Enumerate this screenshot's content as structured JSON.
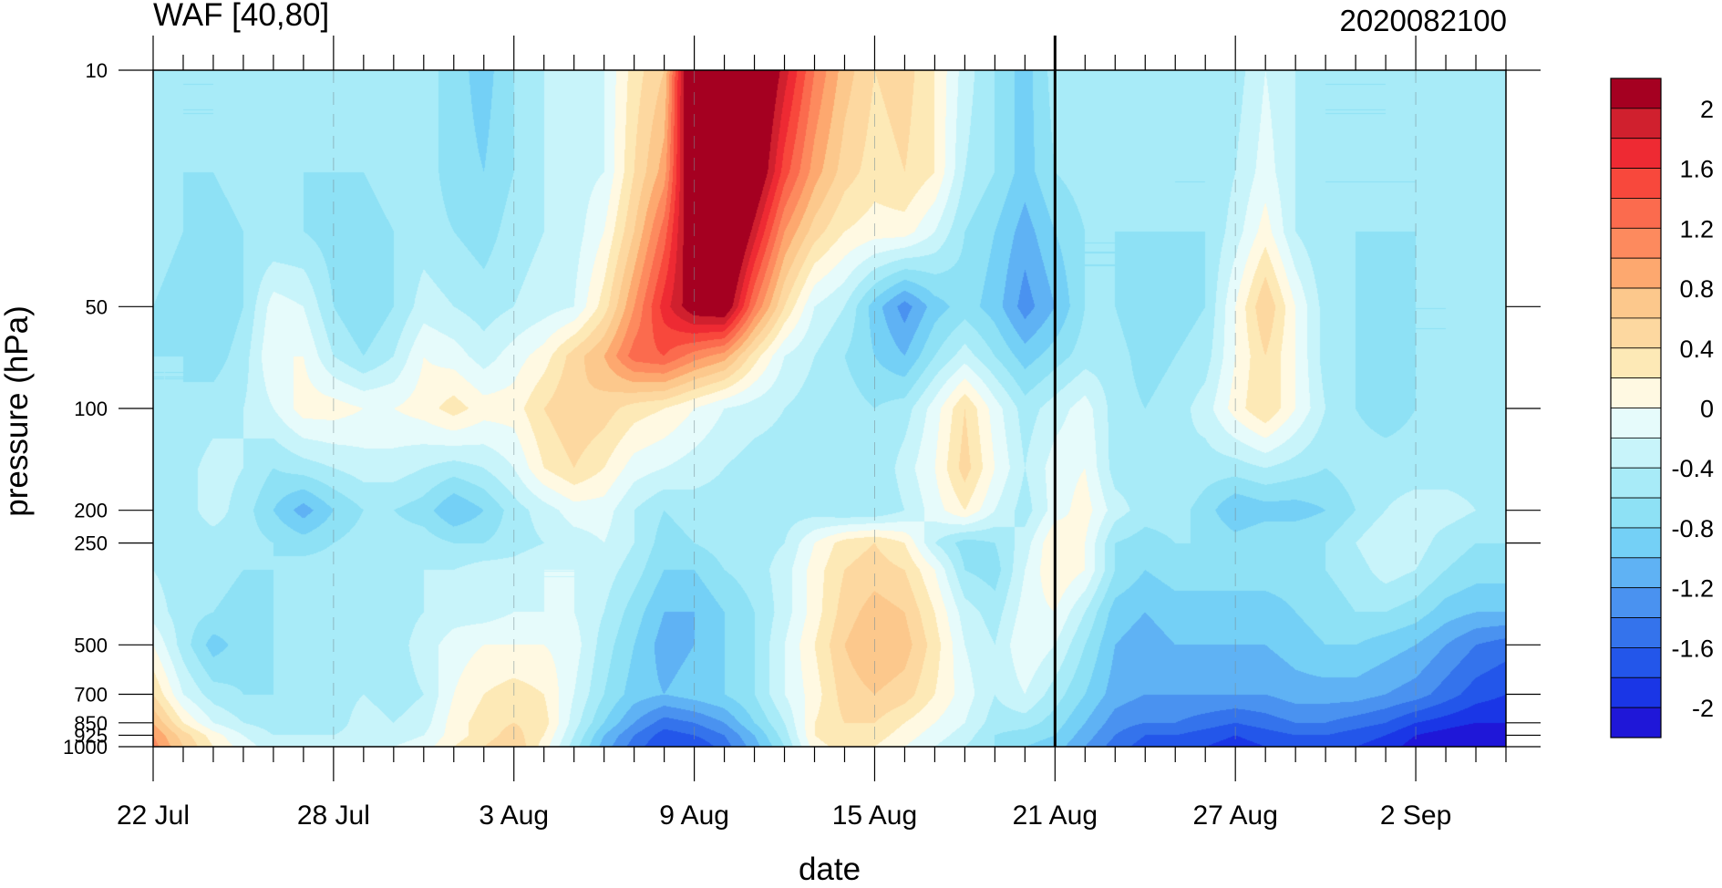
{
  "chart_data": {
    "type": "heatmap",
    "title": "WAF [40,80]",
    "subtitle_right": "2020082100",
    "xlabel": "date",
    "ylabel": "pressure (hPa)",
    "x_tick_labels": [
      "22 Jul",
      "28 Jul",
      "3 Aug",
      "9 Aug",
      "15 Aug",
      "21 Aug",
      "27 Aug",
      "2 Sep"
    ],
    "x_tick_days": [
      0,
      6,
      12,
      18,
      24,
      30,
      36,
      42
    ],
    "x_range_days": [
      0,
      45
    ],
    "y_tick_labels": [
      "10",
      "50",
      "100",
      "200",
      "250",
      "500",
      "700",
      "850",
      "925",
      "1000"
    ],
    "y_tick_values": [
      10,
      50,
      100,
      200,
      250,
      500,
      700,
      850,
      925,
      1000
    ],
    "y_range": [
      10,
      1000
    ],
    "y_scale": "log",
    "y_inverted": true,
    "current_date_day": 30,
    "colorbar": {
      "tick_labels": [
        "2",
        "1.6",
        "1.2",
        "0.8",
        "0.4",
        "0",
        "-0.4",
        "-0.8",
        "-1.2",
        "-1.6",
        "-2"
      ],
      "levels": [
        2.2,
        2.0,
        1.8,
        1.6,
        1.4,
        1.2,
        1.0,
        0.8,
        0.6,
        0.4,
        0.2,
        0.0,
        -0.2,
        -0.4,
        -0.6,
        -0.8,
        -1.0,
        -1.2,
        -1.4,
        -1.6,
        -1.8,
        -2.0,
        -2.2
      ],
      "colors": [
        "#a50021",
        "#d0202e",
        "#ee2a33",
        "#f8483c",
        "#fb6b4e",
        "#fd8a5e",
        "#fda86f",
        "#fcc88c",
        "#fdd8a0",
        "#fde9b6",
        "#fff9e2",
        "#e6fbfb",
        "#c8f4fa",
        "#a8ebf8",
        "#8ee1f5",
        "#74d0f6",
        "#5fb2f4",
        "#4a92f0",
        "#3473ec",
        "#2356ea",
        "#1a36e6",
        "#1f17d8"
      ]
    },
    "grid": {
      "day": [
        0,
        1,
        2,
        3,
        4,
        5,
        6,
        7,
        8,
        9,
        10,
        11,
        12,
        13,
        14,
        15,
        16,
        17,
        18,
        19,
        20,
        21,
        22,
        23,
        24,
        25,
        26,
        27,
        28,
        29,
        30,
        31,
        32,
        33,
        34,
        35,
        36,
        37,
        38,
        39,
        40,
        41,
        42,
        43,
        44,
        45
      ],
      "pressure_hPa": [
        10,
        20,
        30,
        50,
        70,
        100,
        150,
        200,
        250,
        300,
        400,
        500,
        700,
        850,
        925,
        1000
      ],
      "values": [
        [
          -0.5,
          -0.6,
          -0.6,
          -0.4,
          -0.5,
          -0.6,
          -0.5,
          -0.6,
          -0.4,
          -0.5,
          -0.7,
          -0.9,
          -0.6,
          -0.4,
          -0.3,
          -0.2,
          0.3,
          0.6,
          2.8,
          2.9,
          2.6,
          1.9,
          1.2,
          0.7,
          0.4,
          0.5,
          0.2,
          -0.3,
          -0.6,
          -0.9,
          -0.5,
          -0.5,
          -0.5,
          -0.6,
          -0.5,
          -0.5,
          -0.5,
          -0.2,
          -0.4,
          -0.6,
          -0.6,
          -0.6,
          -0.5,
          -0.5,
          -0.5,
          -0.4
        ],
        [
          -0.5,
          -0.6,
          -0.6,
          -0.5,
          -0.5,
          -0.6,
          -0.6,
          -0.6,
          -0.5,
          -0.5,
          -0.7,
          -0.8,
          -0.6,
          -0.4,
          -0.3,
          -0.2,
          0.4,
          0.9,
          2.6,
          2.9,
          2.4,
          1.5,
          0.9,
          0.5,
          0.3,
          0.4,
          0.2,
          -0.4,
          -0.6,
          -0.9,
          -0.6,
          -0.5,
          -0.5,
          -0.5,
          -0.6,
          -0.6,
          -0.4,
          -0.1,
          -0.4,
          -0.6,
          -0.6,
          -0.6,
          -0.6,
          -0.5,
          -0.5,
          -0.4
        ],
        [
          -0.5,
          -0.6,
          -0.7,
          -0.6,
          -0.6,
          -0.6,
          -0.7,
          -0.7,
          -0.6,
          -0.5,
          -0.6,
          -0.7,
          -0.5,
          -0.4,
          -0.3,
          0.0,
          0.6,
          1.3,
          2.4,
          2.8,
          1.9,
          1.0,
          0.5,
          0.2,
          0.1,
          0.1,
          -0.2,
          -0.6,
          -0.8,
          -1.1,
          -0.8,
          -0.6,
          -0.6,
          -0.6,
          -0.6,
          -0.6,
          -0.3,
          0.1,
          -0.4,
          -0.6,
          -0.6,
          -0.6,
          -0.6,
          -0.5,
          -0.5,
          -0.5
        ],
        [
          -0.6,
          -0.7,
          -0.8,
          -0.6,
          -0.1,
          -0.2,
          -0.6,
          -0.8,
          -0.6,
          -0.3,
          -0.4,
          -0.5,
          -0.4,
          -0.3,
          -0.2,
          0.3,
          1.0,
          1.7,
          2.2,
          2.3,
          1.2,
          0.4,
          -0.2,
          -0.4,
          -0.9,
          -1.3,
          -0.9,
          -0.7,
          -0.9,
          -1.3,
          -1.0,
          -0.6,
          -0.6,
          -0.8,
          -0.7,
          -0.6,
          0.0,
          0.6,
          0.0,
          -0.5,
          -0.6,
          -0.7,
          -0.6,
          -0.6,
          -0.5,
          -0.6
        ],
        [
          -0.6,
          -0.6,
          -0.7,
          -0.5,
          0.0,
          0.0,
          -0.4,
          -0.6,
          -0.4,
          0.0,
          -0.1,
          -0.3,
          -0.1,
          0.1,
          0.5,
          0.8,
          1.3,
          1.4,
          1.1,
          0.9,
          0.3,
          -0.2,
          -0.4,
          -0.6,
          -0.8,
          -1.0,
          -0.6,
          -0.3,
          -0.6,
          -0.9,
          -0.7,
          -0.5,
          -0.5,
          -0.7,
          -0.6,
          -0.5,
          0.0,
          0.4,
          0.0,
          -0.5,
          -0.6,
          -0.7,
          -0.6,
          -0.6,
          -0.5,
          -0.6
        ],
        [
          -0.6,
          -0.6,
          -0.5,
          -0.4,
          -0.2,
          0.1,
          0.1,
          0.0,
          0.0,
          0.1,
          0.3,
          0.1,
          0.1,
          0.4,
          0.6,
          0.5,
          0.3,
          0.2,
          0.0,
          -0.2,
          -0.3,
          -0.4,
          -0.5,
          -0.5,
          -0.6,
          -0.5,
          -0.1,
          0.4,
          -0.1,
          -0.5,
          -0.3,
          -0.1,
          -0.5,
          -0.6,
          -0.5,
          -0.3,
          0.1,
          0.4,
          0.0,
          -0.4,
          -0.6,
          -0.7,
          -0.6,
          -0.5,
          -0.5,
          -0.6
        ],
        [
          -0.6,
          -0.5,
          -0.3,
          -0.4,
          -0.6,
          -0.5,
          -0.4,
          -0.3,
          -0.3,
          -0.4,
          -0.5,
          -0.4,
          -0.2,
          0.2,
          0.4,
          0.2,
          -0.1,
          -0.2,
          -0.3,
          -0.4,
          -0.5,
          -0.5,
          -0.4,
          -0.5,
          -0.6,
          -0.3,
          0.0,
          0.5,
          0.0,
          -0.4,
          -0.1,
          0.0,
          -0.5,
          -0.5,
          -0.4,
          -0.5,
          -0.5,
          -0.4,
          -0.5,
          -0.6,
          -0.5,
          -0.5,
          -0.5,
          -0.5,
          -0.5,
          -0.5
        ],
        [
          -0.6,
          -0.5,
          -0.3,
          -0.5,
          -0.8,
          -1.1,
          -0.8,
          -0.6,
          -0.6,
          -0.7,
          -1.0,
          -0.8,
          -0.5,
          -0.3,
          -0.1,
          -0.1,
          -0.4,
          -0.6,
          -0.5,
          -0.5,
          -0.6,
          -0.5,
          -0.5,
          -0.6,
          -0.6,
          -0.4,
          -0.1,
          0.2,
          -0.2,
          -0.5,
          -0.1,
          0.1,
          -0.3,
          -0.5,
          -0.5,
          -0.7,
          -1.0,
          -0.9,
          -0.9,
          -0.8,
          -0.6,
          -0.4,
          -0.3,
          -0.3,
          -0.4,
          -0.5
        ],
        [
          -0.5,
          -0.5,
          -0.5,
          -0.5,
          -0.6,
          -0.7,
          -0.6,
          -0.5,
          -0.5,
          -0.5,
          -0.6,
          -0.6,
          -0.5,
          -0.4,
          -0.3,
          -0.2,
          -0.4,
          -0.7,
          -0.6,
          -0.5,
          -0.5,
          -0.4,
          0.0,
          0.3,
          0.4,
          0.2,
          -0.4,
          -0.7,
          -0.6,
          -0.3,
          0.2,
          0.0,
          -0.6,
          -0.7,
          -0.6,
          -0.6,
          -0.7,
          -0.6,
          -0.6,
          -0.6,
          -0.4,
          -0.2,
          -0.3,
          -0.5,
          -0.6,
          -0.6
        ],
        [
          -0.4,
          -0.5,
          -0.5,
          -0.6,
          -0.6,
          -0.5,
          -0.5,
          -0.5,
          -0.4,
          -0.4,
          -0.4,
          -0.3,
          -0.3,
          -0.2,
          -0.2,
          -0.3,
          -0.5,
          -0.8,
          -0.8,
          -0.6,
          -0.5,
          -0.3,
          0.1,
          0.4,
          0.5,
          0.4,
          0.0,
          -0.6,
          -0.7,
          -0.2,
          0.2,
          0.0,
          -0.6,
          -0.8,
          -0.7,
          -0.7,
          -0.7,
          -0.7,
          -0.7,
          -0.6,
          -0.5,
          -0.3,
          -0.4,
          -0.6,
          -0.7,
          -0.7
        ],
        [
          -0.3,
          -0.5,
          -0.6,
          -0.7,
          -0.6,
          -0.5,
          -0.5,
          -0.5,
          -0.5,
          -0.4,
          -0.3,
          -0.3,
          -0.2,
          -0.2,
          -0.2,
          -0.4,
          -0.7,
          -1.0,
          -1.0,
          -0.8,
          -0.6,
          -0.3,
          0.1,
          0.5,
          0.7,
          0.6,
          0.2,
          -0.3,
          -0.5,
          -0.1,
          0.0,
          -0.4,
          -0.9,
          -1.0,
          -0.9,
          -0.9,
          -0.9,
          -0.9,
          -0.8,
          -0.7,
          -0.6,
          -0.6,
          -0.7,
          -0.9,
          -1.0,
          -1.0
        ],
        [
          0.0,
          -0.5,
          -0.9,
          -0.7,
          -0.6,
          -0.5,
          -0.5,
          -0.5,
          -0.5,
          -0.3,
          -0.1,
          0.0,
          0.0,
          0.0,
          -0.1,
          -0.5,
          -0.8,
          -1.1,
          -1.0,
          -0.8,
          -0.6,
          -0.2,
          0.2,
          0.6,
          0.8,
          0.7,
          0.3,
          -0.2,
          -0.4,
          0.0,
          -0.2,
          -0.6,
          -1.0,
          -1.1,
          -1.0,
          -1.0,
          -1.0,
          -1.0,
          -0.9,
          -0.8,
          -0.8,
          -0.9,
          -1.0,
          -1.2,
          -1.4,
          -1.5
        ],
        [
          0.4,
          -0.2,
          -0.5,
          -0.6,
          -0.6,
          -0.5,
          -0.5,
          -0.4,
          -0.5,
          -0.4,
          0.0,
          0.2,
          0.3,
          0.2,
          -0.2,
          -0.6,
          -0.9,
          -1.0,
          -0.9,
          -0.8,
          -0.6,
          -0.2,
          0.1,
          0.5,
          0.6,
          0.5,
          0.2,
          -0.1,
          -0.4,
          -0.2,
          -0.5,
          -0.8,
          -1.1,
          -1.2,
          -1.2,
          -1.2,
          -1.2,
          -1.2,
          -1.1,
          -1.1,
          -1.1,
          -1.2,
          -1.3,
          -1.5,
          -1.7,
          -1.8
        ],
        [
          0.8,
          0.2,
          -0.2,
          -0.4,
          -0.5,
          -0.5,
          -0.5,
          -0.3,
          -0.4,
          -0.3,
          0.1,
          0.3,
          0.4,
          0.3,
          -0.3,
          -0.8,
          -1.2,
          -1.5,
          -1.4,
          -1.2,
          -0.8,
          -0.4,
          0.2,
          0.4,
          0.4,
          0.2,
          0.0,
          -0.2,
          -0.5,
          -0.5,
          -0.7,
          -1.0,
          -1.3,
          -1.4,
          -1.4,
          -1.5,
          -1.6,
          -1.5,
          -1.4,
          -1.4,
          -1.5,
          -1.6,
          -1.8,
          -1.9,
          -2.0,
          -2.0
        ],
        [
          1.0,
          0.5,
          0.1,
          -0.2,
          -0.4,
          -0.4,
          -0.4,
          -0.3,
          -0.3,
          -0.2,
          0.1,
          0.3,
          0.5,
          0.2,
          -0.4,
          -1.0,
          -1.4,
          -1.7,
          -1.6,
          -1.4,
          -1.0,
          -0.5,
          0.2,
          0.4,
          0.3,
          0.1,
          -0.1,
          -0.3,
          -0.6,
          -0.7,
          -0.8,
          -1.1,
          -1.4,
          -1.6,
          -1.6,
          -1.7,
          -1.8,
          -1.7,
          -1.6,
          -1.6,
          -1.7,
          -1.8,
          -2.0,
          -2.1,
          -2.2,
          -2.2
        ],
        [
          1.1,
          0.6,
          0.2,
          -0.1,
          -0.3,
          -0.3,
          -0.3,
          -0.2,
          -0.2,
          -0.1,
          0.2,
          0.4,
          0.6,
          0.1,
          -0.5,
          -1.1,
          -1.5,
          -1.8,
          -1.8,
          -1.5,
          -1.1,
          -0.6,
          0.1,
          0.3,
          0.2,
          0.0,
          -0.2,
          -0.4,
          -0.6,
          -0.8,
          -0.9,
          -1.2,
          -1.5,
          -1.7,
          -1.7,
          -1.8,
          -1.9,
          -1.8,
          -1.7,
          -1.7,
          -1.8,
          -1.9,
          -2.1,
          -2.2,
          -2.3,
          -2.3
        ]
      ]
    }
  }
}
